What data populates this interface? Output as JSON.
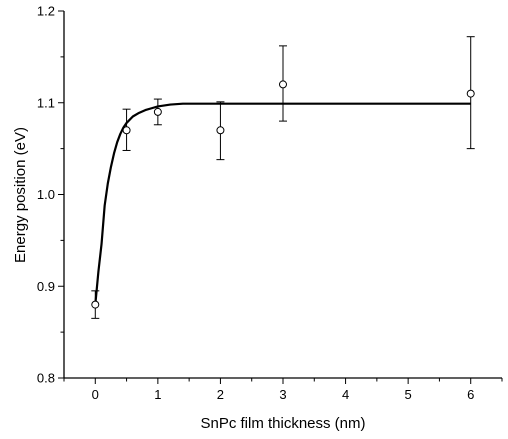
{
  "chart_data": {
    "type": "scatter",
    "title": "",
    "xlabel": "SnPc film thickness (nm)",
    "ylabel": "Energy position (eV)",
    "xlim": [
      -0.5,
      6.5
    ],
    "ylim": [
      0.8,
      1.2
    ],
    "xticks": [
      0,
      1,
      2,
      3,
      4,
      5,
      6
    ],
    "xtick_labels": [
      "0",
      "1",
      "2",
      "3",
      "4",
      "5",
      "6"
    ],
    "yticks": [
      0.8,
      0.9,
      1.0,
      1.1,
      1.2
    ],
    "ytick_labels": [
      "0.8",
      "0.9",
      "1.0",
      "1.1",
      "1.2"
    ],
    "grid": false,
    "legend": null,
    "series": [
      {
        "kind": "points-with-error-bars",
        "marker": "open-circle",
        "x": [
          0,
          0.5,
          1,
          2,
          3,
          6
        ],
        "y": [
          0.88,
          1.07,
          1.09,
          1.07,
          1.12,
          1.11
        ],
        "yerr_low": [
          0.015,
          0.022,
          0.014,
          0.032,
          0.04,
          0.06
        ],
        "yerr_high": [
          0.015,
          0.023,
          0.014,
          0.031,
          0.042,
          0.062
        ]
      },
      {
        "kind": "fit-curve",
        "color": "#000000",
        "x": [
          0,
          0.05,
          0.1,
          0.15,
          0.2,
          0.25,
          0.3,
          0.35,
          0.4,
          0.45,
          0.5,
          0.6,
          0.7,
          0.8,
          0.9,
          1.0,
          1.2,
          1.4,
          1.6,
          2,
          3,
          4,
          5,
          6
        ],
        "y": [
          0.88,
          0.916,
          0.946,
          0.988,
          1.012,
          1.03,
          1.045,
          1.057,
          1.066,
          1.073,
          1.078,
          1.085,
          1.089,
          1.092,
          1.094,
          1.096,
          1.098,
          1.099,
          1.099,
          1.099,
          1.099,
          1.099,
          1.099,
          1.099
        ]
      }
    ]
  }
}
